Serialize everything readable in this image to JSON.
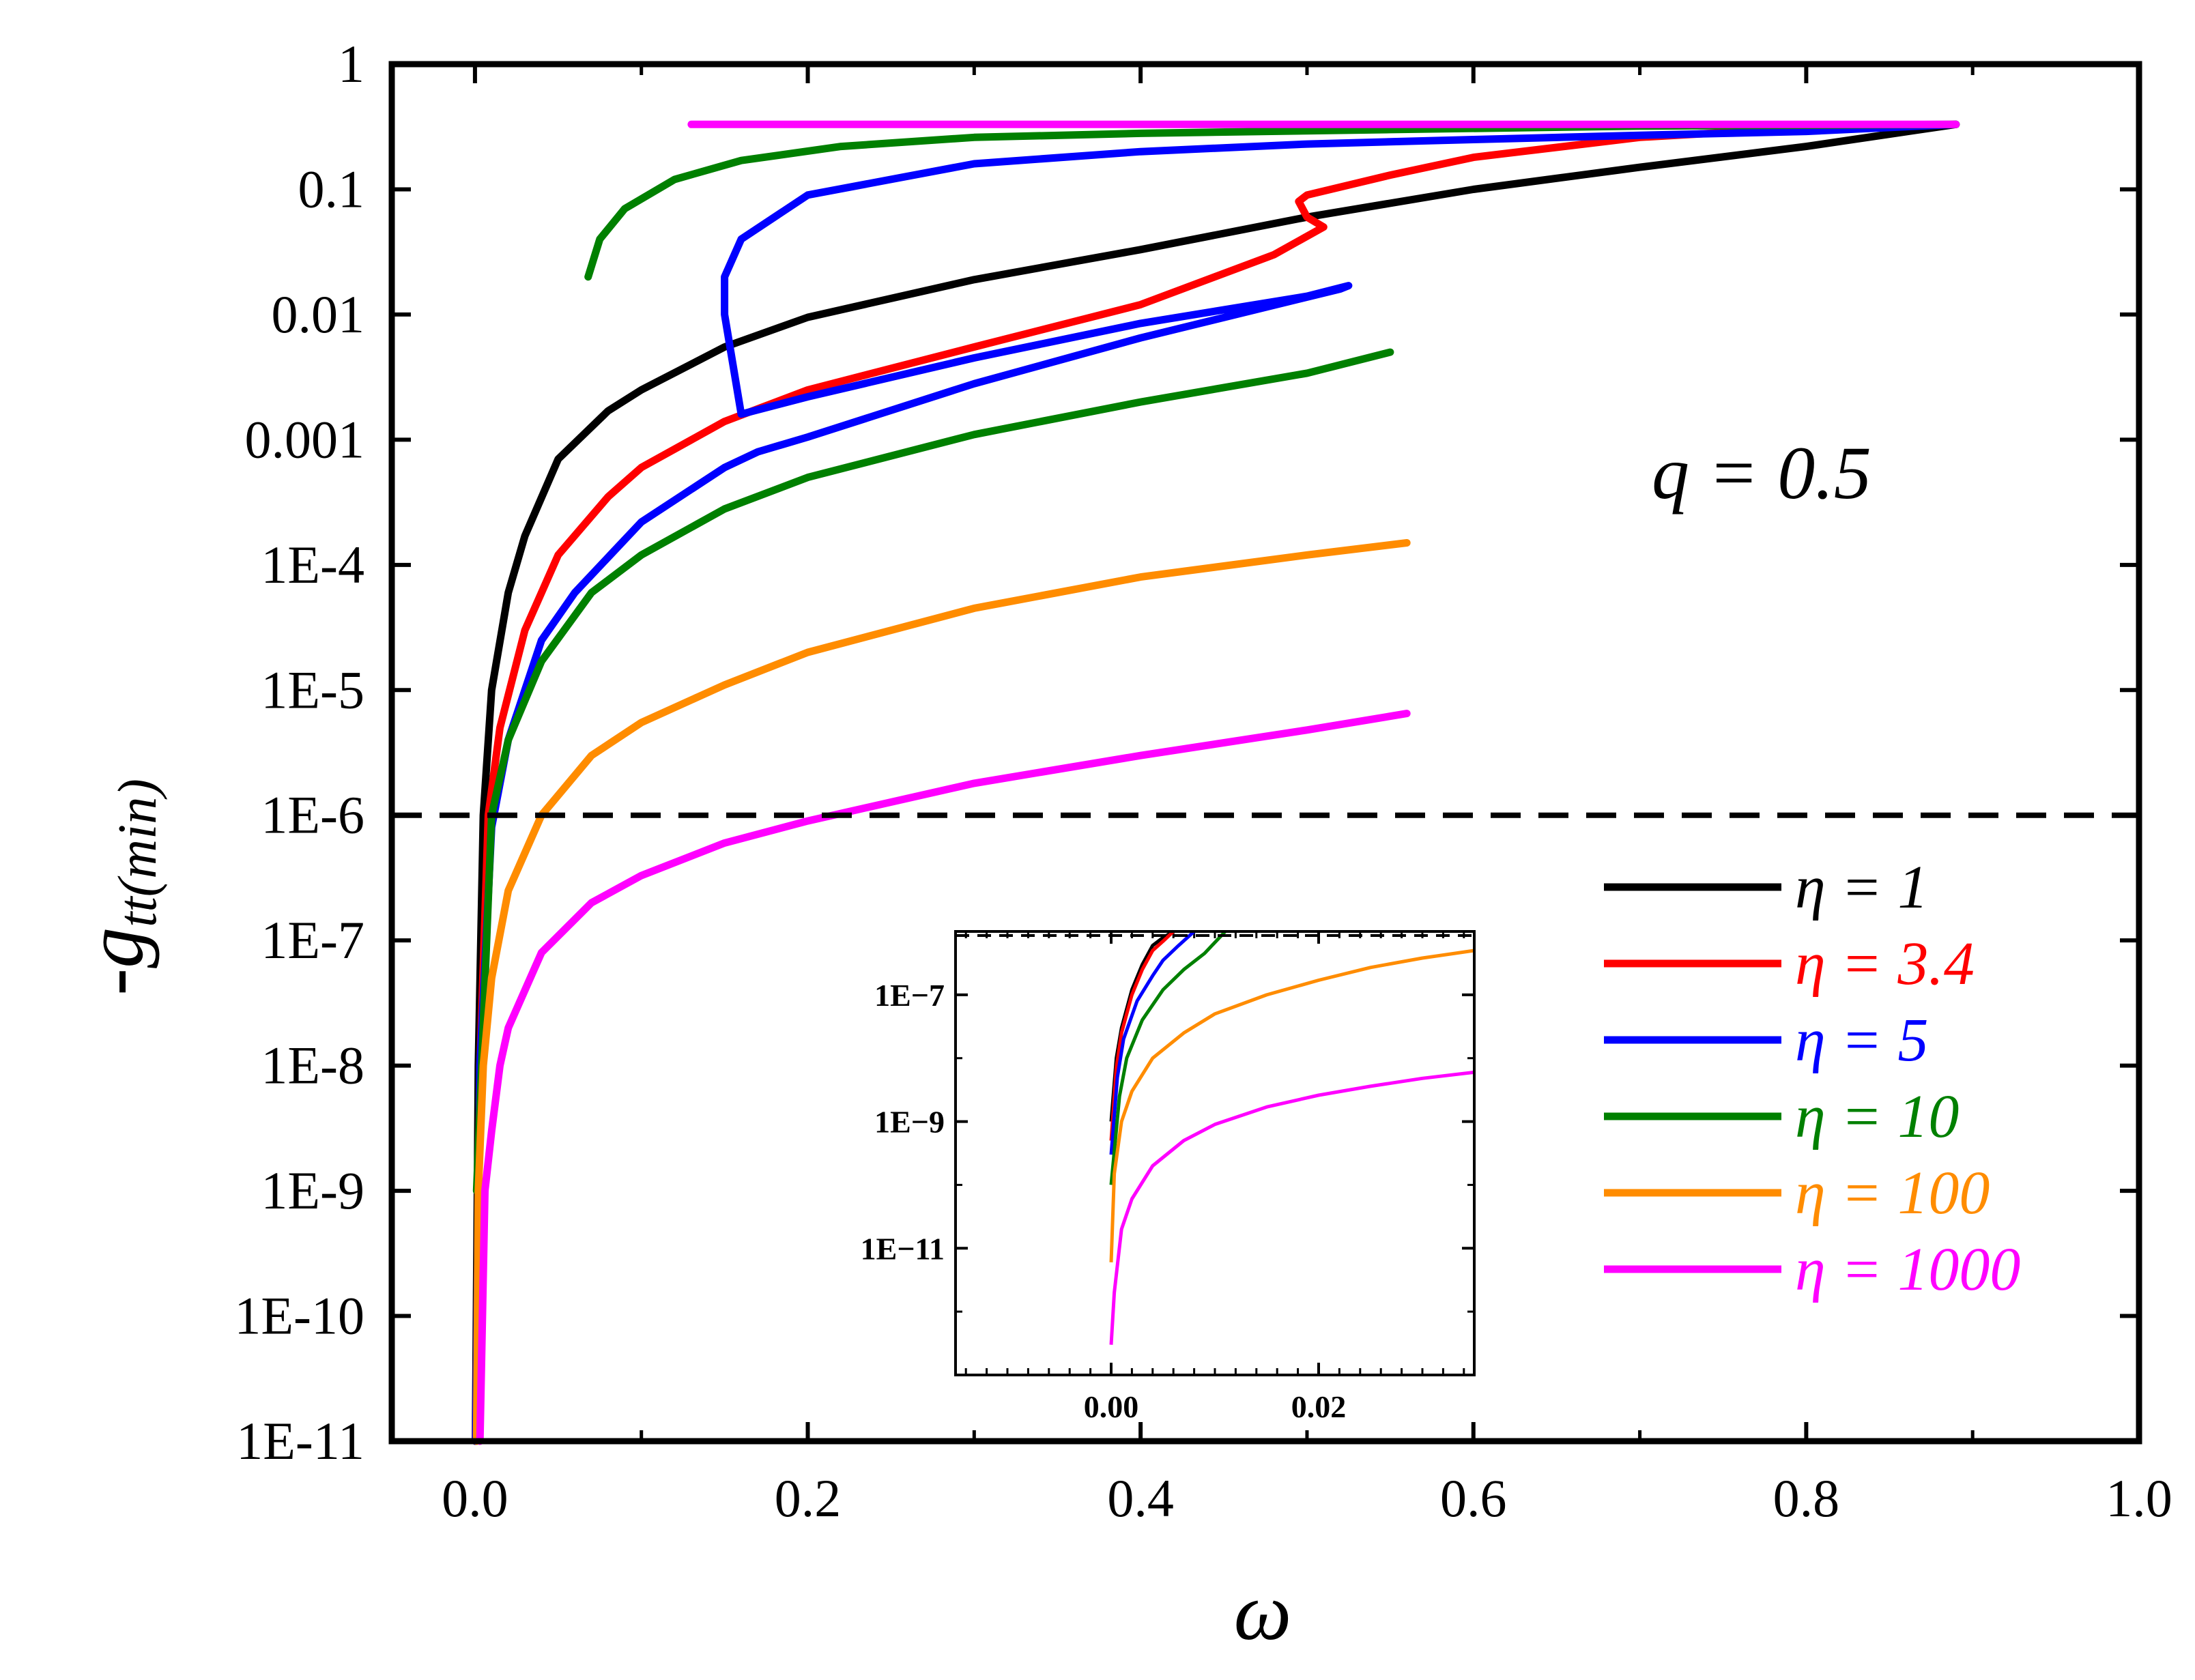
{
  "chart_data": {
    "type": "line",
    "title": "",
    "xlabel": "ω",
    "ylabel_main": "-g",
    "ylabel_sub": "tt(min)",
    "yscale": "log",
    "xlim": [
      -0.05,
      1.0
    ],
    "ylim": [
      1e-11,
      1
    ],
    "x_ticks": [
      0.0,
      0.2,
      0.4,
      0.6,
      0.8,
      1.0
    ],
    "x_tick_labels": [
      "0.0",
      "0.2",
      "0.4",
      "0.6",
      "0.8",
      "1.0"
    ],
    "y_ticks": [
      1,
      0.1,
      0.01,
      0.001,
      0.0001,
      1e-05,
      1e-06,
      1e-07,
      1e-08,
      1e-09,
      1e-10,
      1e-11
    ],
    "y_tick_labels": [
      "1",
      "0.1",
      "0.01",
      "0.001",
      "1E-4",
      "1E-5",
      "1E-6",
      "1E-7",
      "1E-8",
      "1E-9",
      "1E-10",
      "1E-11"
    ],
    "annotation": "q = 0.5",
    "threshold_line": 1e-06,
    "legend": {
      "position": "bottom-right"
    },
    "series": [
      {
        "name": "η = 1",
        "color": "#000000",
        "x": [
          0.0003,
          0.002,
          0.005,
          0.01,
          0.02,
          0.03,
          0.05,
          0.08,
          0.1,
          0.15,
          0.2,
          0.3,
          0.4,
          0.5,
          0.6,
          0.7,
          0.8,
          0.89
        ],
        "y": [
          1e-11,
          1e-08,
          1e-06,
          1e-05,
          6e-05,
          0.00017,
          0.0007,
          0.0017,
          0.0025,
          0.0055,
          0.0095,
          0.019,
          0.033,
          0.06,
          0.1,
          0.15,
          0.22,
          0.33
        ]
      },
      {
        "name": "η = 3.4",
        "color": "#ff0000",
        "x": [
          0.0005,
          0.003,
          0.008,
          0.015,
          0.03,
          0.05,
          0.08,
          0.1,
          0.15,
          0.2,
          0.3,
          0.4,
          0.48,
          0.51,
          0.5,
          0.495,
          0.5,
          0.55,
          0.6,
          0.7,
          0.8,
          0.89
        ],
        "y": [
          1e-11,
          1e-08,
          1e-06,
          5e-06,
          3e-05,
          0.00012,
          0.00035,
          0.0006,
          0.0014,
          0.0025,
          0.0055,
          0.012,
          0.03,
          0.05,
          0.06,
          0.08,
          0.09,
          0.13,
          0.18,
          0.26,
          0.31,
          0.33
        ]
      },
      {
        "name": "η = 5",
        "color": "#0000ff",
        "x": [
          0.0005,
          0.003,
          0.01,
          0.02,
          0.04,
          0.06,
          0.1,
          0.15,
          0.17,
          0.2,
          0.3,
          0.4,
          0.52,
          0.525,
          0.5,
          0.4,
          0.3,
          0.2,
          0.16,
          0.155,
          0.15,
          0.15,
          0.16,
          0.2,
          0.3,
          0.4,
          0.5,
          0.6,
          0.7,
          0.8,
          0.89
        ],
        "y": [
          1e-11,
          1e-08,
          8e-07,
          4e-06,
          2.5e-05,
          6e-05,
          0.00022,
          0.0006,
          0.0008,
          0.00105,
          0.0028,
          0.0065,
          0.016,
          0.017,
          0.014,
          0.0085,
          0.0045,
          0.0022,
          0.0016,
          0.004,
          0.01,
          0.02,
          0.04,
          0.09,
          0.16,
          0.2,
          0.23,
          0.25,
          0.27,
          0.29,
          0.33
        ]
      },
      {
        "name": "η = 10",
        "color": "#008000",
        "x": [
          0.001,
          0.004,
          0.01,
          0.02,
          0.04,
          0.07,
          0.1,
          0.15,
          0.2,
          0.3,
          0.4,
          0.5,
          0.55
        ],
        "y": [
          1e-09,
          1e-08,
          1e-06,
          4e-06,
          1.7e-05,
          6e-05,
          0.00012,
          0.00028,
          0.0005,
          0.0011,
          0.002,
          0.0034,
          0.005
        ]
      },
      {
        "name": "η = 10 (upper)",
        "color": "#008000",
        "legend_entry": false,
        "x": [
          0.068,
          0.075,
          0.09,
          0.12,
          0.16,
          0.22,
          0.3,
          0.4,
          0.55,
          0.7,
          0.89
        ],
        "y": [
          0.02,
          0.04,
          0.07,
          0.12,
          0.17,
          0.22,
          0.26,
          0.28,
          0.3,
          0.32,
          0.33
        ]
      },
      {
        "name": "η = 100",
        "color": "#ff8c00",
        "x": [
          0.001,
          0.002,
          0.005,
          0.01,
          0.02,
          0.04,
          0.07,
          0.1,
          0.15,
          0.2,
          0.3,
          0.4,
          0.5,
          0.56
        ],
        "y": [
          1e-11,
          1e-09,
          1e-08,
          5e-08,
          2.5e-07,
          1e-06,
          3e-06,
          5.5e-06,
          1.1e-05,
          2e-05,
          4.5e-05,
          8e-05,
          0.00012,
          0.00015
        ]
      },
      {
        "name": "η = 1000",
        "color": "#ff00ff",
        "x": [
          0.003,
          0.006,
          0.01,
          0.015,
          0.02,
          0.04,
          0.07,
          0.1,
          0.15,
          0.2,
          0.3,
          0.4,
          0.5,
          0.56
        ],
        "y": [
          1e-11,
          1e-09,
          3e-09,
          1e-08,
          2e-08,
          8e-08,
          2e-07,
          3.3e-07,
          6e-07,
          9e-07,
          1.8e-06,
          3e-06,
          4.8e-06,
          6.5e-06
        ]
      },
      {
        "name": "η = 1000 (upper)",
        "color": "#ff00ff",
        "legend_entry": false,
        "x": [
          0.13,
          0.89
        ],
        "y": [
          0.33,
          0.33
        ]
      }
    ],
    "inset": {
      "xlim": [
        -0.015,
        0.035
      ],
      "ylim": [
        1e-13,
        1e-06
      ],
      "x_ticks": [
        0.0,
        0.02
      ],
      "x_tick_labels": [
        "0.00",
        "0.02"
      ],
      "y_ticks": [
        1e-07,
        1e-09,
        1e-11
      ],
      "y_tick_labels": [
        "1E−7",
        "1E−9",
        "1E−11"
      ],
      "threshold_line": 1e-06,
      "series": [
        {
          "color": "#000000",
          "x": [
            0.0,
            0.0005,
            0.001,
            0.002,
            0.003,
            0.004,
            0.005,
            0.006
          ],
          "y": [
            1e-09,
            1e-08,
            3e-08,
            1.2e-07,
            3e-07,
            6e-07,
            8e-07,
            1e-06
          ]
        },
        {
          "color": "#ff0000",
          "x": [
            0.0,
            0.0005,
            0.001,
            0.002,
            0.003,
            0.004,
            0.005,
            0.006
          ],
          "y": [
            5e-10,
            7e-09,
            2.5e-08,
            1e-07,
            2.5e-07,
            5e-07,
            7e-07,
            1e-06
          ]
        },
        {
          "color": "#0000ff",
          "x": [
            0.0,
            0.0006,
            0.0012,
            0.0025,
            0.004,
            0.005,
            0.0065,
            0.008
          ],
          "y": [
            3e-10,
            5e-09,
            2e-08,
            8e-08,
            2e-07,
            3.5e-07,
            6e-07,
            1e-06
          ]
        },
        {
          "color": "#008000",
          "x": [
            0.0,
            0.0008,
            0.0015,
            0.003,
            0.005,
            0.007,
            0.009,
            0.011
          ],
          "y": [
            1e-10,
            2.5e-09,
            1e-08,
            4e-08,
            1.2e-07,
            2.5e-07,
            4.5e-07,
            1e-06
          ]
        },
        {
          "color": "#ff8c00",
          "x": [
            0.0,
            0.0003,
            0.001,
            0.002,
            0.004,
            0.007,
            0.01,
            0.015,
            0.02,
            0.025,
            0.03,
            0.035
          ],
          "y": [
            6e-12,
            1.5e-10,
            1e-09,
            3e-09,
            1e-08,
            2.5e-08,
            5e-08,
            1e-07,
            1.7e-07,
            2.7e-07,
            3.8e-07,
            5e-07
          ]
        },
        {
          "color": "#ff00ff",
          "x": [
            0.0,
            0.0003,
            0.001,
            0.002,
            0.004,
            0.007,
            0.01,
            0.015,
            0.02,
            0.025,
            0.03,
            0.035
          ],
          "y": [
            3e-13,
            2e-12,
            2e-11,
            6e-11,
            2e-10,
            5e-10,
            9e-10,
            1.7e-09,
            2.6e-09,
            3.6e-09,
            4.8e-09,
            6e-09
          ]
        }
      ]
    }
  }
}
